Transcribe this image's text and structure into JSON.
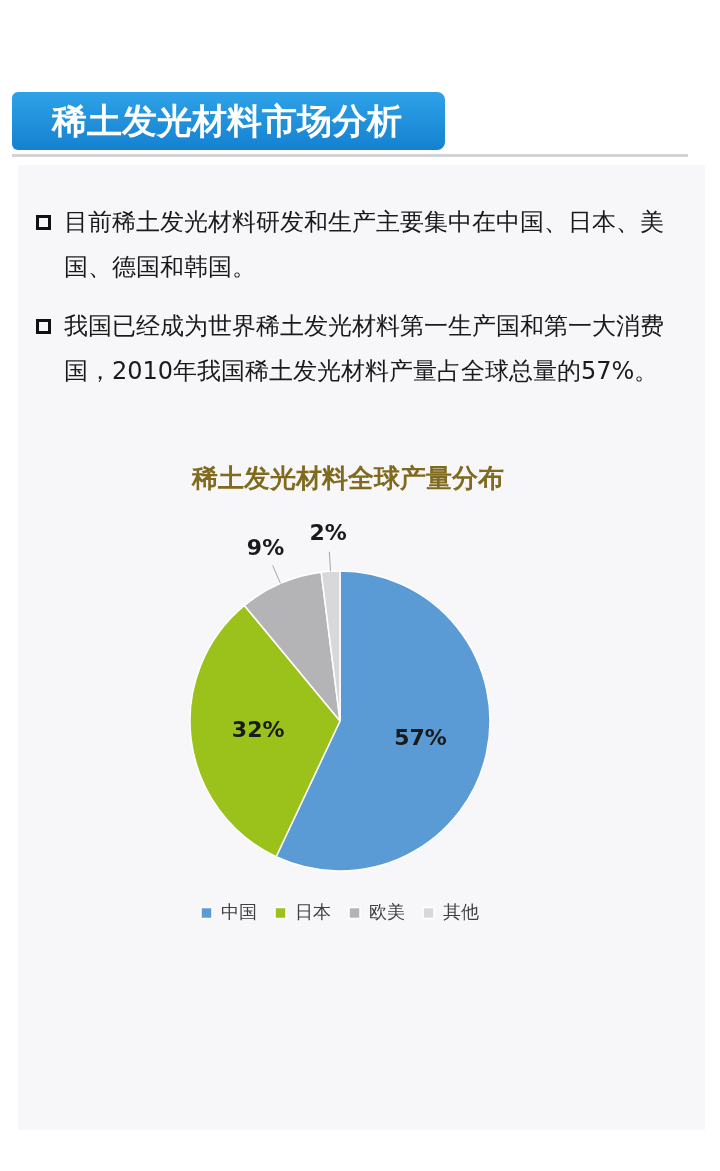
{
  "chart_data": {
    "type": "pie",
    "title": "稀土发光材料市场分析",
    "subtitle": "稀土发光材料全球产量分布",
    "annotations": [
      "目前稀土发光材料研发和生产主要集中在中国、日本、美国、德国和韩国。",
      "我国已经成为世界稀土发光材料第一生产国和第一大消费国，2010年我国稀土发光材料产量占全球总量的57%。"
    ],
    "categories": [
      "中国",
      "日本",
      "欧美",
      "其他"
    ],
    "values": [
      57,
      32,
      9,
      2
    ],
    "colors": [
      "#5b9bd5",
      "#9bc11b",
      "#b4b4b7",
      "#d8d8db"
    ],
    "value_labels": [
      "57%",
      "32%",
      "9%",
      "2%"
    ],
    "legend": "bottom"
  }
}
